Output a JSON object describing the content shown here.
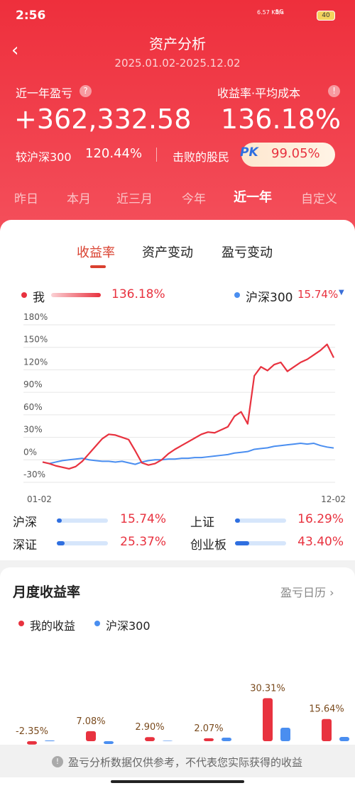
{
  "status_bar": {
    "time": "2:56",
    "network": "6.57 KB/s",
    "signal": "5G",
    "battery": "40"
  },
  "header": {
    "title": "资产分析",
    "date_range": "2025.01.02-2025.12.02"
  },
  "summary": {
    "label": "近一年盈亏",
    "metric_toggle": "收益率·平均成本",
    "profit": "+362,332.58",
    "return_rate": "136.18%",
    "compare_label": "较沪深300",
    "compare_value": "120.44%",
    "beat_label": "击败的股民",
    "pk": "PK",
    "beat_value": "99.05%"
  },
  "period_tabs": [
    "昨日",
    "本月",
    "近三月",
    "今年",
    "近一年",
    "自定义"
  ],
  "chart_tabs": [
    "收益率",
    "资产变动",
    "盈亏变动"
  ],
  "chart_data": [
    {
      "type": "line",
      "categories": [
        "01-02",
        null,
        null,
        null,
        null,
        null,
        null,
        null,
        null,
        null,
        null,
        null,
        null,
        null,
        null,
        null,
        null,
        null,
        null,
        null,
        null,
        null,
        null,
        null,
        null,
        null,
        null,
        null,
        null,
        null,
        null,
        null,
        null,
        null,
        null,
        null,
        null,
        null,
        null,
        null,
        null,
        null,
        null,
        null,
        "12-02"
      ],
      "series": [
        {
          "name": "我",
          "color": "#e8323f",
          "legend_value": "136.18%",
          "values": [
            -3,
            -5,
            -8,
            -10,
            -12,
            -9,
            -2,
            8,
            18,
            28,
            34,
            33,
            30,
            27,
            12,
            -4,
            -7,
            -5,
            0,
            8,
            14,
            19,
            24,
            29,
            34,
            37,
            36,
            40,
            44,
            58,
            64,
            48,
            112,
            124,
            119,
            127,
            130,
            118,
            124,
            130,
            134,
            140,
            146,
            154,
            136.18
          ]
        },
        {
          "name": "沪深300",
          "color": "#4a8ef0",
          "legend_value": "15.74%",
          "values": [
            -3,
            -5,
            -3,
            -1,
            0,
            1,
            2,
            0,
            -1,
            -2,
            -2,
            -3,
            -2,
            -4,
            -6,
            -3,
            -1,
            0,
            0,
            1,
            1,
            2,
            2,
            3,
            3,
            4,
            5,
            6,
            7,
            9,
            10,
            11,
            14,
            15,
            16,
            18,
            19,
            20,
            21,
            22,
            21,
            22,
            19,
            17,
            15.74
          ]
        }
      ],
      "ylim": [
        -30,
        180
      ],
      "yticks": [
        {
          "value": -30,
          "label": "-30%"
        },
        {
          "value": 0,
          "label": "0%"
        },
        {
          "value": 30,
          "label": "30%"
        },
        {
          "value": 60,
          "label": "60%"
        },
        {
          "value": 90,
          "label": "90%"
        },
        {
          "value": 120,
          "label": "120%"
        },
        {
          "value": 150,
          "label": "150%"
        },
        {
          "value": 180,
          "label": "180%"
        }
      ],
      "grid": true
    },
    {
      "type": "bar",
      "title": "月度收益率",
      "categories": [
        null,
        null,
        null,
        null,
        null,
        null
      ],
      "series": [
        {
          "name": "我的收益",
          "color": "#e8323f",
          "values": [
            -2.35,
            7.08,
            2.9,
            2.07,
            30.31,
            15.64
          ],
          "value_labels": [
            "-2.35%",
            "7.08%",
            "2.90%",
            "2.07%",
            "30.31%",
            "15.64%"
          ]
        },
        {
          "name": "沪深300",
          "color": "#4a8ef0",
          "values": [
            0.5,
            -2,
            0.3,
            2.5,
            9.5,
            3
          ]
        }
      ]
    }
  ],
  "indices": [
    {
      "name": "沪深",
      "value": 15.74,
      "label": "15.74%"
    },
    {
      "name": "上证",
      "value": 16.29,
      "label": "16.29%"
    },
    {
      "name": "深证",
      "value": 25.37,
      "label": "25.37%"
    },
    {
      "name": "创业板",
      "value": 43.4,
      "label": "43.40%"
    }
  ],
  "monthly": {
    "calendar_link": "盈亏日历"
  },
  "footer": {
    "disclaimer": "盈亏分析数据仅供参考，不代表您实际获得的收益"
  }
}
